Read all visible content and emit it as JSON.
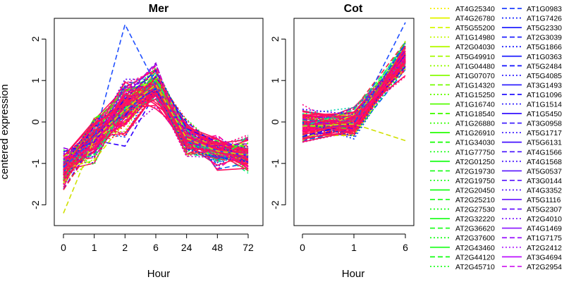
{
  "figure": {
    "ylabel": "centered expression",
    "colors": {
      "series_palette": [
        "#ffdf00",
        "#cfef00",
        "#a0ff00",
        "#70ff00",
        "#40ff00",
        "#10ff20",
        "#00ff50",
        "#00f080",
        "#00d0b0",
        "#0090e0",
        "#0060f0",
        "#0030ff",
        "#1010ff",
        "#3000ff",
        "#5000ff",
        "#7000f0",
        "#9000e0",
        "#b000d0",
        "#d000c0",
        "#ff00a0",
        "#ff0080",
        "#ff1060",
        "#ff2040",
        "#ff2020"
      ],
      "highlight": "#ff1060"
    }
  },
  "chart_data": [
    {
      "type": "line",
      "title": "Mer",
      "x": [
        "0",
        "1",
        "2",
        "6",
        "24",
        "48",
        "72"
      ],
      "xlabel": "Hour",
      "ylabel": "centered expression",
      "ylim": [
        -2.5,
        2.5
      ],
      "yticks": [
        -2,
        -1,
        0,
        1,
        2
      ],
      "grid": false,
      "series_count": 120,
      "mean_profile": [
        -1.1,
        -0.4,
        0.3,
        0.9,
        -0.4,
        -0.7,
        -0.8
      ],
      "spread": [
        0.4,
        0.5,
        0.6,
        0.45,
        0.4,
        0.35,
        0.35
      ],
      "extremes": {
        "max": {
          "x": "2",
          "y": 2.35
        },
        "min": {
          "x": "0",
          "y": -2.2
        }
      }
    },
    {
      "type": "line",
      "title": "Cot",
      "x": [
        "0",
        "1",
        "6"
      ],
      "xlabel": "Hour",
      "ylabel": "",
      "ylim": [
        -2.5,
        2.5
      ],
      "yticks": [
        -2,
        -1,
        0,
        1,
        2
      ],
      "grid": false,
      "series_count": 120,
      "mean_profile": [
        -0.1,
        -0.05,
        1.55
      ],
      "spread": [
        0.4,
        0.35,
        0.35
      ],
      "extremes": {
        "max": {
          "x": "6",
          "y": 2.4
        },
        "min": {
          "x": "6",
          "y": -0.45
        }
      }
    }
  ],
  "legend": {
    "placement": "right",
    "col1": [
      {
        "label": "AT4G25340",
        "color": "#f5f000",
        "dash": "dot"
      },
      {
        "label": "AT4G26780",
        "color": "#e5f500",
        "dash": "solid"
      },
      {
        "label": "AT5G55200",
        "color": "#d5f800",
        "dash": "dash"
      },
      {
        "label": "AT1G14980",
        "color": "#c5fa00",
        "dash": "dot"
      },
      {
        "label": "AT2G04030",
        "color": "#b5fb00",
        "dash": "solid"
      },
      {
        "label": "AT5G49910",
        "color": "#a5fc00",
        "dash": "dash"
      },
      {
        "label": "AT1G04480",
        "color": "#95fd00",
        "dash": "dot"
      },
      {
        "label": "AT1G07070",
        "color": "#85fd00",
        "dash": "solid"
      },
      {
        "label": "AT1G14320",
        "color": "#75fe00",
        "dash": "dash"
      },
      {
        "label": "AT1G15250",
        "color": "#65fe00",
        "dash": "dot"
      },
      {
        "label": "AT1G16740",
        "color": "#55fe00",
        "dash": "solid"
      },
      {
        "label": "AT1G18540",
        "color": "#45fe00",
        "dash": "dash"
      },
      {
        "label": "AT1G26880",
        "color": "#35ff00",
        "dash": "dot"
      },
      {
        "label": "AT1G26910",
        "color": "#25ff00",
        "dash": "solid"
      },
      {
        "label": "AT1G34030",
        "color": "#20ff10",
        "dash": "dash"
      },
      {
        "label": "AT1G77750",
        "color": "#20ff20",
        "dash": "dot"
      },
      {
        "label": "AT2G01250",
        "color": "#20ff20",
        "dash": "solid"
      },
      {
        "label": "AT2G19730",
        "color": "#20ff20",
        "dash": "dash"
      },
      {
        "label": "AT2G19750",
        "color": "#20ff20",
        "dash": "dot"
      },
      {
        "label": "AT2G20450",
        "color": "#20ff20",
        "dash": "solid"
      },
      {
        "label": "AT2G25210",
        "color": "#20ff20",
        "dash": "dash"
      },
      {
        "label": "AT2G27530",
        "color": "#20ff20",
        "dash": "dot"
      },
      {
        "label": "AT2G32220",
        "color": "#20ff20",
        "dash": "solid"
      },
      {
        "label": "AT2G36620",
        "color": "#20ff20",
        "dash": "dash"
      },
      {
        "label": "AT2G37600",
        "color": "#20ff20",
        "dash": "dot"
      },
      {
        "label": "AT2G43460",
        "color": "#20ff20",
        "dash": "solid"
      },
      {
        "label": "AT2G44120",
        "color": "#20ff20",
        "dash": "dash"
      },
      {
        "label": "AT2G45710",
        "color": "#20ff20",
        "dash": "dot"
      }
    ],
    "col2": [
      {
        "label": "AT1G0983",
        "color": "#2040ff",
        "dash": "dash"
      },
      {
        "label": "AT1G7426",
        "color": "#2030ff",
        "dash": "dot"
      },
      {
        "label": "AT5G2330",
        "color": "#2020ff",
        "dash": "solid"
      },
      {
        "label": "AT2G3039",
        "color": "#2020ff",
        "dash": "dash"
      },
      {
        "label": "AT5G1866",
        "color": "#2020ff",
        "dash": "dot"
      },
      {
        "label": "AT1G0363",
        "color": "#2020ff",
        "dash": "solid"
      },
      {
        "label": "AT5G2484",
        "color": "#2020ff",
        "dash": "dash"
      },
      {
        "label": "AT5G4085",
        "color": "#3020ff",
        "dash": "dot"
      },
      {
        "label": "AT3G1493",
        "color": "#3020ff",
        "dash": "solid"
      },
      {
        "label": "AT1G1096",
        "color": "#3020ff",
        "dash": "dash"
      },
      {
        "label": "AT1G1514",
        "color": "#3020ff",
        "dash": "dot"
      },
      {
        "label": "AT1G5450",
        "color": "#4020ff",
        "dash": "solid"
      },
      {
        "label": "AT3G0958",
        "color": "#4020ff",
        "dash": "dash"
      },
      {
        "label": "AT5G1717",
        "color": "#4020ff",
        "dash": "dot"
      },
      {
        "label": "AT5G6131",
        "color": "#5020ff",
        "dash": "solid"
      },
      {
        "label": "AT4G1566",
        "color": "#5020ff",
        "dash": "dash"
      },
      {
        "label": "AT4G1568",
        "color": "#5020ff",
        "dash": "dot"
      },
      {
        "label": "AT5G0537",
        "color": "#6020ff",
        "dash": "solid"
      },
      {
        "label": "AT3G0144",
        "color": "#6020ff",
        "dash": "dash"
      },
      {
        "label": "AT4G3352",
        "color": "#6020ff",
        "dash": "dot"
      },
      {
        "label": "AT5G1116",
        "color": "#7020ff",
        "dash": "solid"
      },
      {
        "label": "AT5G2307",
        "color": "#7020ff",
        "dash": "dash"
      },
      {
        "label": "AT2G4010",
        "color": "#8020ff",
        "dash": "dot"
      },
      {
        "label": "AT4G1469",
        "color": "#9020ff",
        "dash": "solid"
      },
      {
        "label": "AT1G7175",
        "color": "#a020ff",
        "dash": "dash"
      },
      {
        "label": "AT2G2412",
        "color": "#b020ff",
        "dash": "dot"
      },
      {
        "label": "AT3G4694",
        "color": "#c020ff",
        "dash": "solid"
      },
      {
        "label": "AT2G2954",
        "color": "#d020f0",
        "dash": "dash"
      }
    ]
  }
}
